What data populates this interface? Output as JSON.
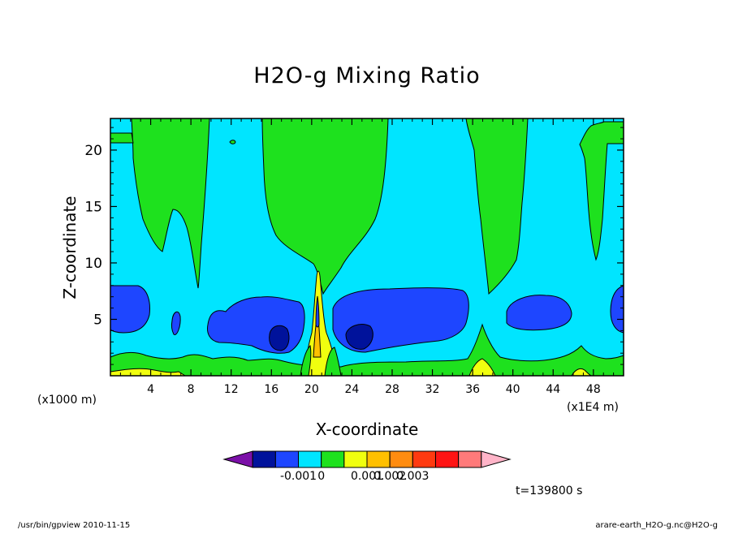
{
  "chart_data": {
    "type": "contour",
    "title": "H2O-g Mixing Ratio",
    "xlabel": "X-coordinate",
    "ylabel": "Z-coordinate",
    "x_unit": "(x1000 m)",
    "x_scale_note": "(x1E4 m)",
    "xlim": [
      0,
      51
    ],
    "ylim": [
      0,
      22.8
    ],
    "x_ticks": [
      "4",
      "8",
      "12",
      "16",
      "20",
      "24",
      "28",
      "32",
      "36",
      "40",
      "44",
      "48"
    ],
    "x_tick_values": [
      4,
      8,
      12,
      16,
      20,
      24,
      28,
      32,
      36,
      40,
      44,
      48
    ],
    "y_ticks": [
      "5",
      "10",
      "15",
      "20"
    ],
    "y_tick_values": [
      5,
      10,
      15,
      20
    ],
    "colorbar": {
      "labels": [
        "-0.001",
        "0",
        "0.001",
        "0.002",
        "0.003"
      ],
      "colors": [
        "#7b10a8",
        "#00129b",
        "#1e46ff",
        "#00e5ff",
        "#1ee11e",
        "#f0ff0f",
        "#ffc000",
        "#ff8c10",
        "#ff3a10",
        "#ff1414",
        "#ff7a7a",
        "#ffb4c8"
      ]
    },
    "time_label": "t=139800 s"
  },
  "footer": {
    "left": "/usr/bin/gpview   2010-11-15",
    "right": "arare-earth_H2O-g.nc@H2O-g"
  }
}
